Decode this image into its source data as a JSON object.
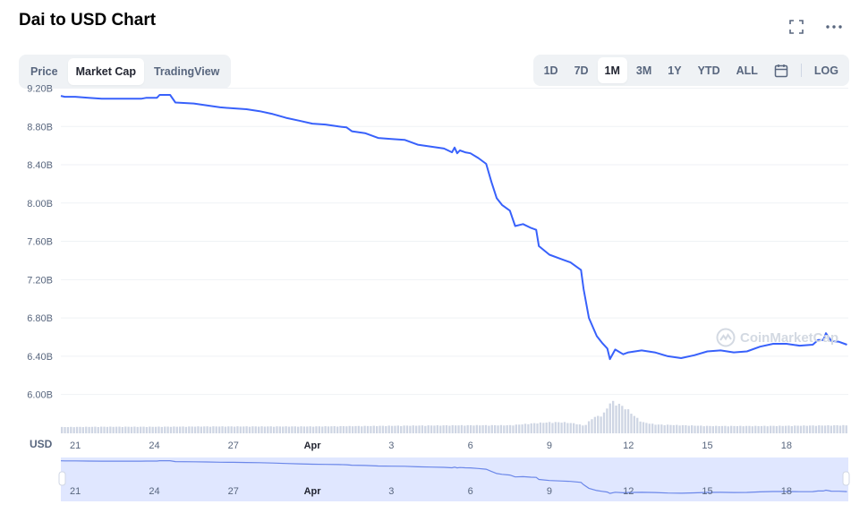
{
  "header": {
    "title": "Dai to USD Chart"
  },
  "top_icons": [
    "expand-icon",
    "more-icon"
  ],
  "tabs_left": [
    {
      "label": "Price",
      "active": false
    },
    {
      "label": "Market Cap",
      "active": true
    },
    {
      "label": "TradingView",
      "active": false
    }
  ],
  "ranges": [
    {
      "label": "1D",
      "active": false
    },
    {
      "label": "7D",
      "active": false
    },
    {
      "label": "1M",
      "active": true
    },
    {
      "label": "3M",
      "active": false
    },
    {
      "label": "1Y",
      "active": false
    },
    {
      "label": "YTD",
      "active": false
    },
    {
      "label": "ALL",
      "active": false
    }
  ],
  "calendar_icon": "calendar-icon",
  "log_label": "LOG",
  "watermark": "CoinMarketCap",
  "colors": {
    "line": "#3861fb",
    "volume": "#cfd6e4",
    "grid": "#eff2f5",
    "navigator_fill": "#e0e7ff"
  },
  "chart_data": {
    "type": "line",
    "title": "Dai to USD Chart",
    "ylabel": "USD",
    "ylim": [
      5.8,
      9.2
    ],
    "y_ticks": [
      "9.20B",
      "8.80B",
      "8.40B",
      "8.00B",
      "7.60B",
      "7.20B",
      "6.80B",
      "6.40B",
      "6.00B"
    ],
    "x_ticks": [
      {
        "x": 21,
        "label": "21",
        "bold": false
      },
      {
        "x": 24,
        "label": "24",
        "bold": false
      },
      {
        "x": 27,
        "label": "27",
        "bold": false
      },
      {
        "x": 30,
        "label": "Apr",
        "bold": true
      },
      {
        "x": 33,
        "label": "3",
        "bold": false
      },
      {
        "x": 36,
        "label": "6",
        "bold": false
      },
      {
        "x": 39,
        "label": "9",
        "bold": false
      },
      {
        "x": 42,
        "label": "12",
        "bold": false
      },
      {
        "x": 45,
        "label": "15",
        "bold": false
      },
      {
        "x": 48,
        "label": "18",
        "bold": false
      }
    ],
    "x_range": [
      20.45,
      50.35
    ],
    "series": [
      {
        "values": [
          [
            20.45,
            9.12
          ],
          [
            20.6,
            9.11
          ],
          [
            21.0,
            9.11
          ],
          [
            21.5,
            9.1
          ],
          [
            22.0,
            9.09
          ],
          [
            22.5,
            9.09
          ],
          [
            23.0,
            9.09
          ],
          [
            23.5,
            9.09
          ],
          [
            23.7,
            9.1
          ],
          [
            24.1,
            9.1
          ],
          [
            24.2,
            9.13
          ],
          [
            24.6,
            9.13
          ],
          [
            24.8,
            9.05
          ],
          [
            25.5,
            9.04
          ],
          [
            26.0,
            9.02
          ],
          [
            26.5,
            9.0
          ],
          [
            27.0,
            8.99
          ],
          [
            27.5,
            8.98
          ],
          [
            28.0,
            8.96
          ],
          [
            28.5,
            8.93
          ],
          [
            29.0,
            8.89
          ],
          [
            29.5,
            8.86
          ],
          [
            30.0,
            8.83
          ],
          [
            30.5,
            8.82
          ],
          [
            31.0,
            8.8
          ],
          [
            31.3,
            8.79
          ],
          [
            31.5,
            8.75
          ],
          [
            32.0,
            8.73
          ],
          [
            32.5,
            8.68
          ],
          [
            33.0,
            8.67
          ],
          [
            33.5,
            8.66
          ],
          [
            34.0,
            8.61
          ],
          [
            34.5,
            8.59
          ],
          [
            35.0,
            8.57
          ],
          [
            35.3,
            8.53
          ],
          [
            35.4,
            8.58
          ],
          [
            35.5,
            8.52
          ],
          [
            35.6,
            8.55
          ],
          [
            35.8,
            8.53
          ],
          [
            36.0,
            8.52
          ],
          [
            36.3,
            8.47
          ],
          [
            36.6,
            8.41
          ],
          [
            36.8,
            8.22
          ],
          [
            37.0,
            8.05
          ],
          [
            37.2,
            7.98
          ],
          [
            37.5,
            7.92
          ],
          [
            37.7,
            7.76
          ],
          [
            38.0,
            7.78
          ],
          [
            38.3,
            7.74
          ],
          [
            38.5,
            7.72
          ],
          [
            38.6,
            7.55
          ],
          [
            39.0,
            7.46
          ],
          [
            39.5,
            7.41
          ],
          [
            39.8,
            7.38
          ],
          [
            40.2,
            7.3
          ],
          [
            40.3,
            7.1
          ],
          [
            40.5,
            6.8
          ],
          [
            40.8,
            6.61
          ],
          [
            41.0,
            6.54
          ],
          [
            41.2,
            6.48
          ],
          [
            41.3,
            6.37
          ],
          [
            41.5,
            6.47
          ],
          [
            41.8,
            6.42
          ],
          [
            42.0,
            6.44
          ],
          [
            42.5,
            6.46
          ],
          [
            43.0,
            6.44
          ],
          [
            43.5,
            6.4
          ],
          [
            44.0,
            6.38
          ],
          [
            44.5,
            6.41
          ],
          [
            45.0,
            6.45
          ],
          [
            45.5,
            6.46
          ],
          [
            46.0,
            6.44
          ],
          [
            46.5,
            6.45
          ],
          [
            47.0,
            6.5
          ],
          [
            47.5,
            6.53
          ],
          [
            48.0,
            6.53
          ],
          [
            48.5,
            6.51
          ],
          [
            49.0,
            6.52
          ],
          [
            49.2,
            6.57
          ],
          [
            49.4,
            6.57
          ],
          [
            49.5,
            6.64
          ],
          [
            49.7,
            6.56
          ],
          [
            50.0,
            6.55
          ],
          [
            50.3,
            6.52
          ]
        ]
      }
    ],
    "volume": [
      [
        20.45,
        0.18
      ],
      [
        22.0,
        0.2
      ],
      [
        24.0,
        0.2
      ],
      [
        26.0,
        0.22
      ],
      [
        28.0,
        0.22
      ],
      [
        30.0,
        0.22
      ],
      [
        32.0,
        0.25
      ],
      [
        34.0,
        0.28
      ],
      [
        36.0,
        0.3
      ],
      [
        37.5,
        0.3
      ],
      [
        38.5,
        0.45
      ],
      [
        39.0,
        0.5
      ],
      [
        39.5,
        0.5
      ],
      [
        40.0,
        0.4
      ],
      [
        40.3,
        0.25
      ],
      [
        40.6,
        0.8
      ],
      [
        41.0,
        1.0
      ],
      [
        41.3,
        1.9
      ],
      [
        41.6,
        1.7
      ],
      [
        41.9,
        1.4
      ],
      [
        42.2,
        0.9
      ],
      [
        42.5,
        0.5
      ],
      [
        43.0,
        0.35
      ],
      [
        44.0,
        0.3
      ],
      [
        45.0,
        0.25
      ],
      [
        47.0,
        0.25
      ],
      [
        49.0,
        0.28
      ],
      [
        50.35,
        0.3
      ]
    ]
  }
}
